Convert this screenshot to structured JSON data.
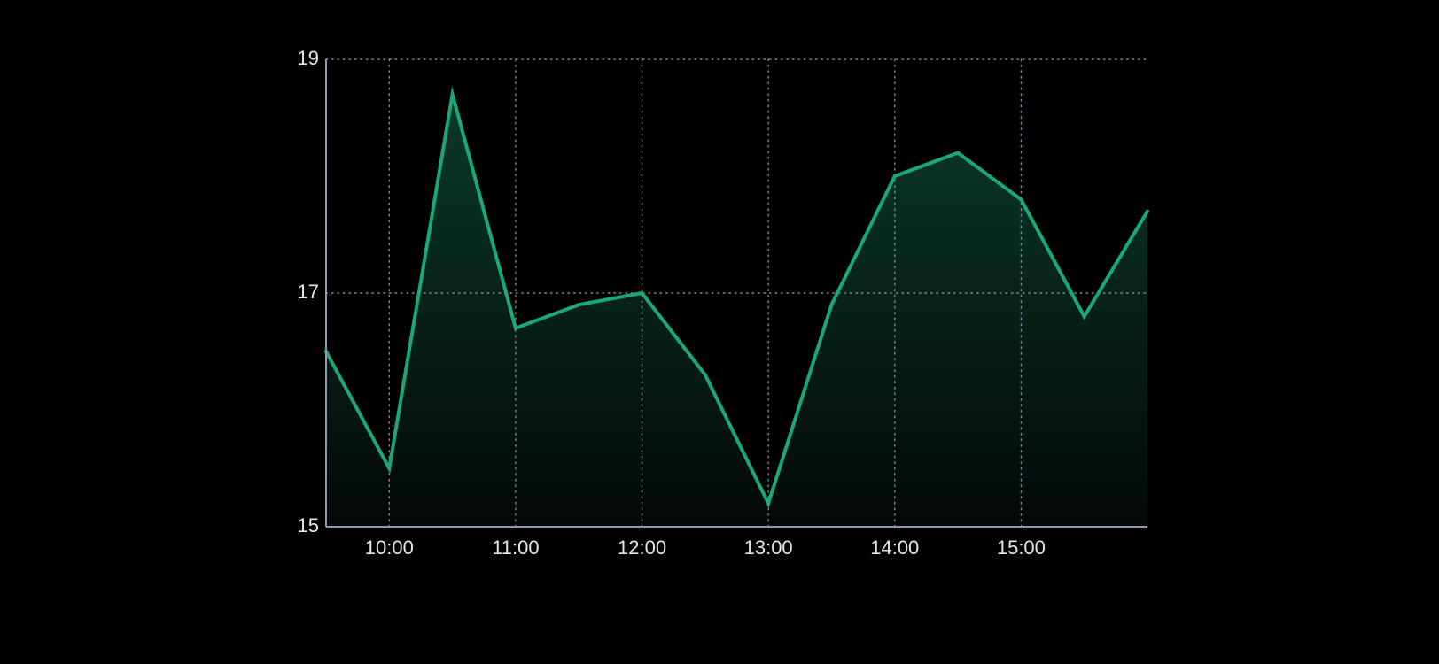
{
  "chart_data": {
    "type": "area",
    "title": "",
    "xlabel": "",
    "ylabel": "",
    "x": [
      "09:30",
      "10:00",
      "10:30",
      "11:00",
      "11:30",
      "12:00",
      "12:30",
      "13:00",
      "13:30",
      "14:00",
      "14:30",
      "15:00",
      "15:30",
      "16:00"
    ],
    "series": [
      {
        "values": [
          16.5,
          15.5,
          18.7,
          16.7,
          16.9,
          17.0,
          16.3,
          15.2,
          16.9,
          18.0,
          18.2,
          17.8,
          16.8,
          17.7
        ]
      }
    ],
    "xlim": [
      "09:30",
      "16:00"
    ],
    "ylim": [
      15,
      19
    ],
    "y_ticks": [
      15,
      17,
      19
    ],
    "x_ticks": [
      "10:00",
      "11:00",
      "12:00",
      "13:00",
      "14:00",
      "15:00"
    ],
    "grid": true,
    "legend": "none",
    "colors": {
      "line": "#1aa877",
      "fill_top": "#0a3a29",
      "fill_bottom": "#040806",
      "axis": "#8e9aab",
      "grid": "#8e9aab",
      "text": "#e6e6e6",
      "background": "#000000"
    }
  }
}
